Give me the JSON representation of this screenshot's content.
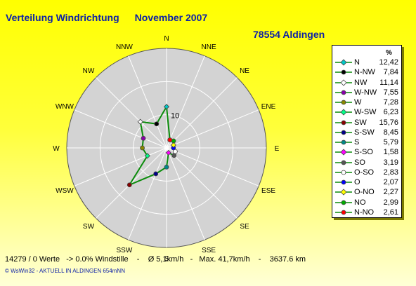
{
  "header": {
    "title": "Verteilung Windrichtung",
    "month": "November 2007",
    "station": "78554 Aldingen"
  },
  "chart_data": {
    "type": "radar",
    "title": "Verteilung Windrichtung November 2007",
    "unit": "%",
    "rlim": [
      0,
      30
    ],
    "ring_label": "10",
    "grid": true,
    "legend_position": "right",
    "categories": [
      "N",
      "NNE",
      "NE",
      "ENE",
      "E",
      "ESE",
      "SE",
      "SSE",
      "S",
      "SSW",
      "SW",
      "WSW",
      "W",
      "WNW",
      "NW",
      "NNW"
    ],
    "values": [
      12.42,
      2.61,
      2.99,
      2.27,
      2.07,
      2.83,
      3.19,
      1.58,
      5.79,
      8.45,
      15.76,
      6.23,
      7.28,
      7.55,
      11.14,
      7.84
    ],
    "series_color": "#0a8c0a"
  },
  "legend": {
    "header": "%",
    "items": [
      {
        "label": "N",
        "value": "12,42",
        "color": "#00c8c8",
        "marker": "diamond"
      },
      {
        "label": "N-NW",
        "value": "7,84",
        "color": "#000000",
        "marker": "circle"
      },
      {
        "label": "NW",
        "value": "11,14",
        "color": "#ffffff",
        "marker": "diamond"
      },
      {
        "label": "W-NW",
        "value": "7,55",
        "color": "#8800aa",
        "marker": "circle"
      },
      {
        "label": "W",
        "value": "7,28",
        "color": "#888800",
        "marker": "circle"
      },
      {
        "label": "W-SW",
        "value": "6,23",
        "color": "#00ff88",
        "marker": "diamond"
      },
      {
        "label": "SW",
        "value": "15,76",
        "color": "#880000",
        "marker": "circle"
      },
      {
        "label": "S-SW",
        "value": "8,45",
        "color": "#000088",
        "marker": "circle"
      },
      {
        "label": "S",
        "value": "5,79",
        "color": "#008888",
        "marker": "circle"
      },
      {
        "label": "S-SO",
        "value": "1,58",
        "color": "#ff00ff",
        "marker": "diamond"
      },
      {
        "label": "SO",
        "value": "3,19",
        "color": "#555555",
        "marker": "circle"
      },
      {
        "label": "O-SO",
        "value": "2,83",
        "color": "#ffffff",
        "marker": "circle"
      },
      {
        "label": "O",
        "value": "2,07",
        "color": "#0000ff",
        "marker": "circle"
      },
      {
        "label": "O-NO",
        "value": "2,27",
        "color": "#ffff00",
        "marker": "diamond"
      },
      {
        "label": "NO",
        "value": "2,99",
        "color": "#00aa00",
        "marker": "circle"
      },
      {
        "label": "N-NO",
        "value": "2,61",
        "color": "#ff0000",
        "marker": "circle"
      }
    ]
  },
  "footer": {
    "stats": "14279 / 0 Werte   -> 0.0% Windstille    -    Ø 5,1km/h   -   Max. 41,7km/h    -    3637.6 km",
    "credit": "© WsWin32  -  AKTUELL IN ALDINGEN 654mNN"
  }
}
